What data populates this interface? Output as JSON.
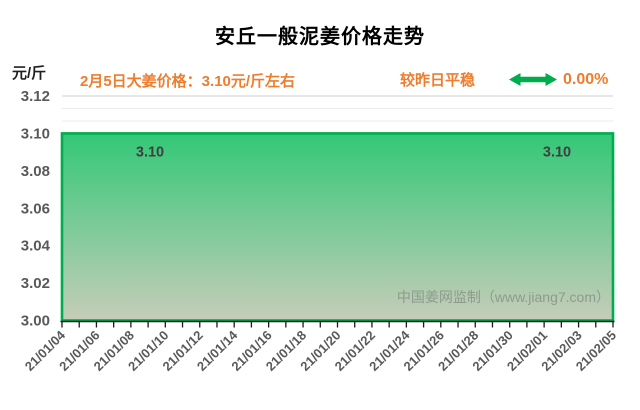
{
  "title": "安丘一般泥姜价格走势",
  "header": {
    "unit_label": "元/斤",
    "price_note": "2月5日大姜价格：3.10元/斤左右",
    "trend_label": "较昨日平稳",
    "trend_icon": "double-headed-horizontal-arrow",
    "trend_percent": "0.00%",
    "accent_orange": "#EE7D2E",
    "arrow_green": "#00AC4E",
    "title_color": "#000000",
    "unit_color": "#1F1F1F"
  },
  "watermark": "中国姜网监制（www.jiang7.com）",
  "chart_data": {
    "type": "area",
    "title": "安丘一般泥姜价格走势",
    "ylabel": "元/斤",
    "x_tick_labels": [
      "21/01/04",
      "21/01/06",
      "21/01/08",
      "21/01/10",
      "21/01/12",
      "21/01/14",
      "21/01/16",
      "21/01/18",
      "21/01/20",
      "21/01/22",
      "21/01/24",
      "21/01/26",
      "21/01/28",
      "21/01/30",
      "21/02/01",
      "21/02/03",
      "21/02/05"
    ],
    "minor_ticks_between_labels": 1,
    "series": [
      {
        "name": "安丘一般泥姜价格",
        "values": [
          3.1,
          3.1,
          3.1,
          3.1,
          3.1,
          3.1,
          3.1,
          3.1,
          3.1,
          3.1,
          3.1,
          3.1,
          3.1,
          3.1,
          3.1,
          3.1,
          3.1
        ]
      }
    ],
    "endpoint_labels": {
      "first": "3.10",
      "last": "3.10"
    },
    "ylim": [
      3.0,
      3.12
    ],
    "ytick_step": 0.02,
    "ytick_decimals": 2,
    "grid": "horizontal",
    "legend": false,
    "colors": {
      "line": "#00AC4E",
      "fill_top": "#33C877",
      "fill_bottom": "#C6CDB9",
      "axis": "#1A1A1A",
      "tick_label": "#595959",
      "gridline": "#CFCFCF",
      "minor_gridline": "#ECECEC",
      "data_label": "#3F3F3F",
      "watermark_color": "#8E9A8E"
    }
  }
}
